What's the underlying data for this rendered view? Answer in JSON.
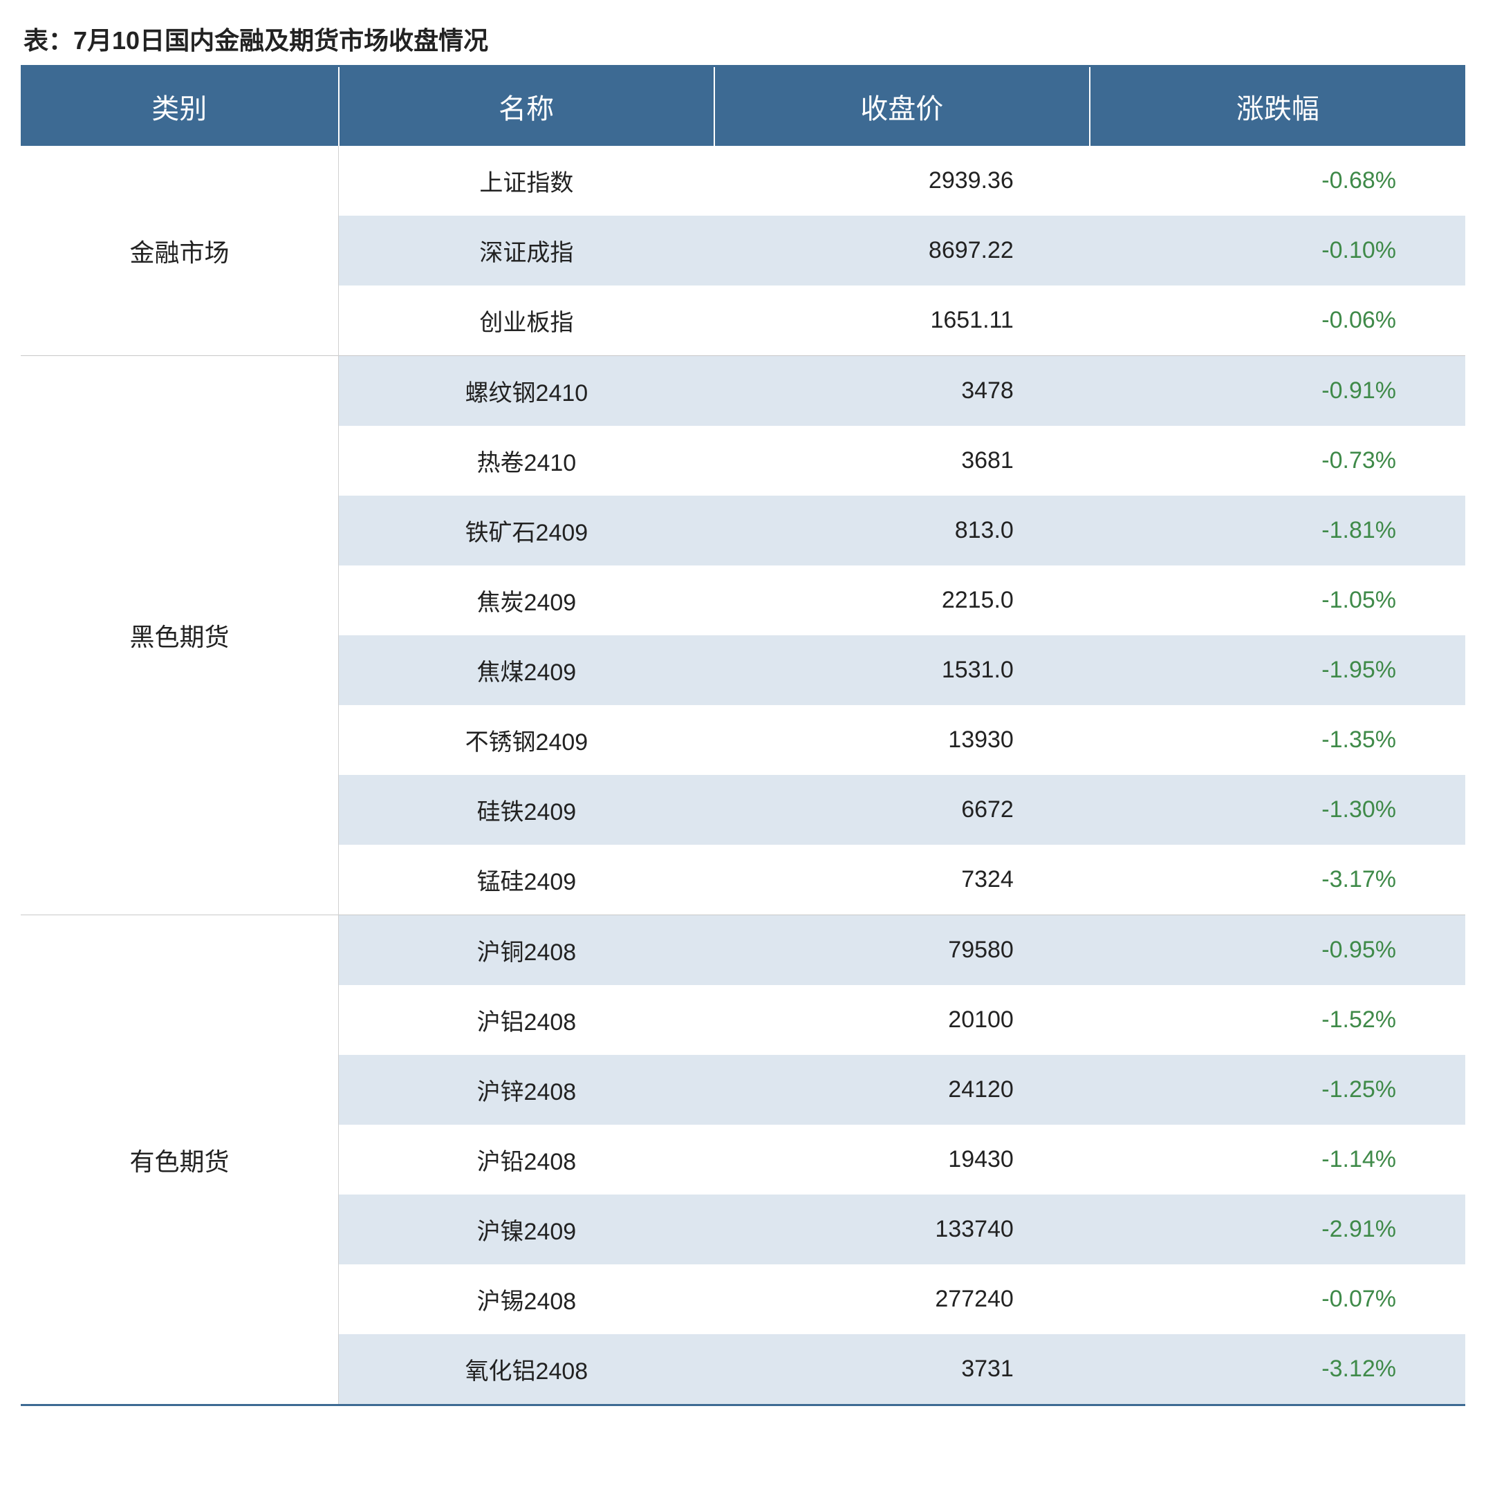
{
  "title": "表：7月10日国内金融及期货市场收盘情况",
  "header": {
    "c1": "类别",
    "c2": "名称",
    "c3": "收盘价",
    "c4": "涨跌幅"
  },
  "colors": {
    "header_bg": "#3d6a93",
    "header_fg": "#ffffff",
    "stripe_bg": "#dde6ef",
    "row_bg": "#ffffff",
    "negative": "#3f8a49",
    "positive": "#c0392b",
    "border": "#c8c8c8"
  },
  "typography": {
    "title_fontsize": 36,
    "header_fontsize": 40,
    "body_fontsize": 34
  },
  "groups": [
    {
      "category": "金融市场",
      "rows": [
        {
          "name": "上证指数",
          "price": "2939.36",
          "change": "-0.68%",
          "dir": "neg",
          "stripe": false
        },
        {
          "name": "深证成指",
          "price": "8697.22",
          "change": "-0.10%",
          "dir": "neg",
          "stripe": true
        },
        {
          "name": "创业板指",
          "price": "1651.11",
          "change": "-0.06%",
          "dir": "neg",
          "stripe": false
        }
      ]
    },
    {
      "category": "黑色期货",
      "rows": [
        {
          "name": "螺纹钢2410",
          "price": "3478",
          "change": "-0.91%",
          "dir": "neg",
          "stripe": true
        },
        {
          "name": "热卷2410",
          "price": "3681",
          "change": "-0.73%",
          "dir": "neg",
          "stripe": false
        },
        {
          "name": "铁矿石2409",
          "price": "813.0",
          "change": "-1.81%",
          "dir": "neg",
          "stripe": true
        },
        {
          "name": "焦炭2409",
          "price": "2215.0",
          "change": "-1.05%",
          "dir": "neg",
          "stripe": false
        },
        {
          "name": "焦煤2409",
          "price": "1531.0",
          "change": "-1.95%",
          "dir": "neg",
          "stripe": true
        },
        {
          "name": "不锈钢2409",
          "price": "13930",
          "change": "-1.35%",
          "dir": "neg",
          "stripe": false
        },
        {
          "name": "硅铁2409",
          "price": "6672",
          "change": "-1.30%",
          "dir": "neg",
          "stripe": true
        },
        {
          "name": "锰硅2409",
          "price": "7324",
          "change": "-3.17%",
          "dir": "neg",
          "stripe": false
        }
      ]
    },
    {
      "category": "有色期货",
      "rows": [
        {
          "name": "沪铜2408",
          "price": "79580",
          "change": "-0.95%",
          "dir": "neg",
          "stripe": true
        },
        {
          "name": "沪铝2408",
          "price": "20100",
          "change": "-1.52%",
          "dir": "neg",
          "stripe": false
        },
        {
          "name": "沪锌2408",
          "price": "24120",
          "change": "-1.25%",
          "dir": "neg",
          "stripe": true
        },
        {
          "name": "沪铅2408",
          "price": "19430",
          "change": "-1.14%",
          "dir": "neg",
          "stripe": false
        },
        {
          "name": "沪镍2409",
          "price": "133740",
          "change": "-2.91%",
          "dir": "neg",
          "stripe": true
        },
        {
          "name": "沪锡2408",
          "price": "277240",
          "change": "-0.07%",
          "dir": "neg",
          "stripe": false
        },
        {
          "name": "氧化铝2408",
          "price": "3731",
          "change": "-3.12%",
          "dir": "neg",
          "stripe": true
        }
      ]
    }
  ]
}
